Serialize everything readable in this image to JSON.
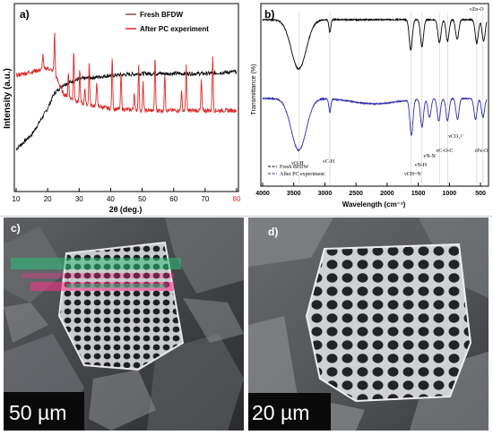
{
  "panels": {
    "a": {
      "label": "a)",
      "legend": [
        "Fresh BFDW",
        "After PC experiment"
      ],
      "ylabel": "Intensity (a.u.)",
      "xlabel": "2θ (deg.)",
      "ticks": [
        "10",
        "20",
        "30",
        "40",
        "50",
        "60",
        "70",
        "80"
      ]
    },
    "b": {
      "label": "b)",
      "ylabel": "Transmittance (%)",
      "xlabel": "Wavelength (cm⁻¹)",
      "ticks": [
        "4000",
        "3500",
        "3000",
        "2500",
        "2000",
        "1500",
        "1000",
        "500"
      ],
      "legend": [
        "Fresh BFDW",
        "After PC experiment"
      ],
      "annotations": [
        "νO-H",
        "νC-H",
        "νCH=N",
        "νN-H",
        "νN-N",
        "νC-O-C",
        "νCO₃²⁻",
        "νFe-O",
        "νZn-O"
      ]
    },
    "c": {
      "label": "c)",
      "scalebar": "50 µm"
    },
    "d": {
      "label": "d)",
      "scalebar": "20 µm"
    }
  },
  "chart_data": [
    {
      "type": "line",
      "title": "",
      "xlabel": "2θ (deg.)",
      "ylabel": "Intensity (a.u.)",
      "xlim": [
        10,
        80
      ],
      "series": [
        {
          "name": "Fresh BFDW",
          "color": "#000000",
          "x": [
            10,
            15,
            20,
            22,
            25,
            30,
            40,
            50,
            60,
            70,
            80
          ],
          "y": [
            0.22,
            0.3,
            0.44,
            0.52,
            0.57,
            0.6,
            0.62,
            0.63,
            0.63,
            0.63,
            0.64
          ]
        },
        {
          "name": "After PC experiment",
          "color": "#e02828",
          "x": [
            10,
            15,
            20,
            22,
            25,
            30,
            40,
            50,
            60,
            70,
            80
          ],
          "y": [
            0.62,
            0.64,
            0.66,
            0.64,
            0.52,
            0.47,
            0.44,
            0.43,
            0.43,
            0.43,
            0.43
          ],
          "peaks": [
            18.5,
            22.2,
            26.6,
            28.3,
            30.2,
            31.8,
            33.2,
            35.6,
            40.5,
            43.3,
            47.5,
            48.9,
            50.3,
            54.1,
            57.2,
            62.5,
            64.0,
            68.8,
            72.4
          ]
        }
      ]
    },
    {
      "type": "line",
      "title": "",
      "xlabel": "Wavelength (cm⁻¹)",
      "ylabel": "Transmittance (%)",
      "xlim": [
        4000,
        400
      ],
      "series": [
        {
          "name": "Fresh BFDW",
          "color": "#000000",
          "bands": [
            3420,
            2920,
            1620,
            1440,
            1160,
            1030,
            875,
            560,
            450
          ]
        },
        {
          "name": "After PC experiment",
          "color": "#2a2ab0",
          "bands": [
            3420,
            2920,
            1610,
            1440,
            1320,
            1170,
            1030,
            870,
            580,
            460
          ]
        }
      ]
    }
  ]
}
